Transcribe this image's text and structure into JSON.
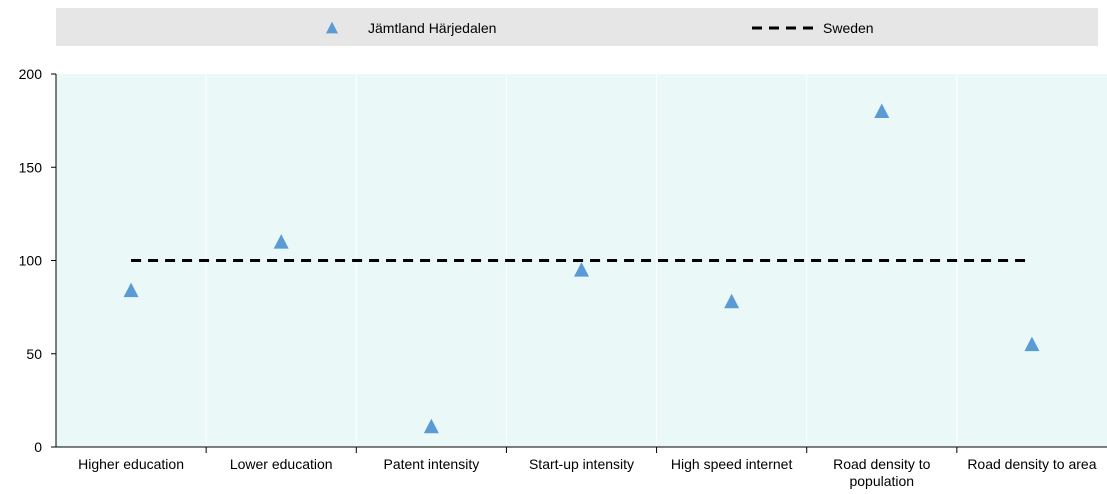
{
  "chart_data": {
    "type": "scatter",
    "categories": [
      [
        "Higher education"
      ],
      [
        "Lower education"
      ],
      [
        "Patent intensity"
      ],
      [
        "Start-up intensity"
      ],
      [
        "High speed internet"
      ],
      [
        "Road density to",
        "population"
      ],
      [
        "Road density to area"
      ]
    ],
    "series": [
      {
        "name": "Jämtland Härjedalen",
        "marker": "triangle",
        "color": "#5b9bd5",
        "values": [
          84,
          110,
          11,
          95,
          78,
          180,
          55
        ]
      },
      {
        "name": "Sweden",
        "style": "dashed-line",
        "color": "#000000",
        "values": [
          100,
          100,
          100,
          100,
          100,
          100,
          100
        ]
      }
    ],
    "yticks": [
      0,
      50,
      100,
      150,
      200
    ],
    "ylim": [
      0,
      200
    ],
    "legend_position": "top",
    "grid": "vertical",
    "plot_background": "#eaf8f8",
    "legend_background": "#e6e6e6"
  }
}
